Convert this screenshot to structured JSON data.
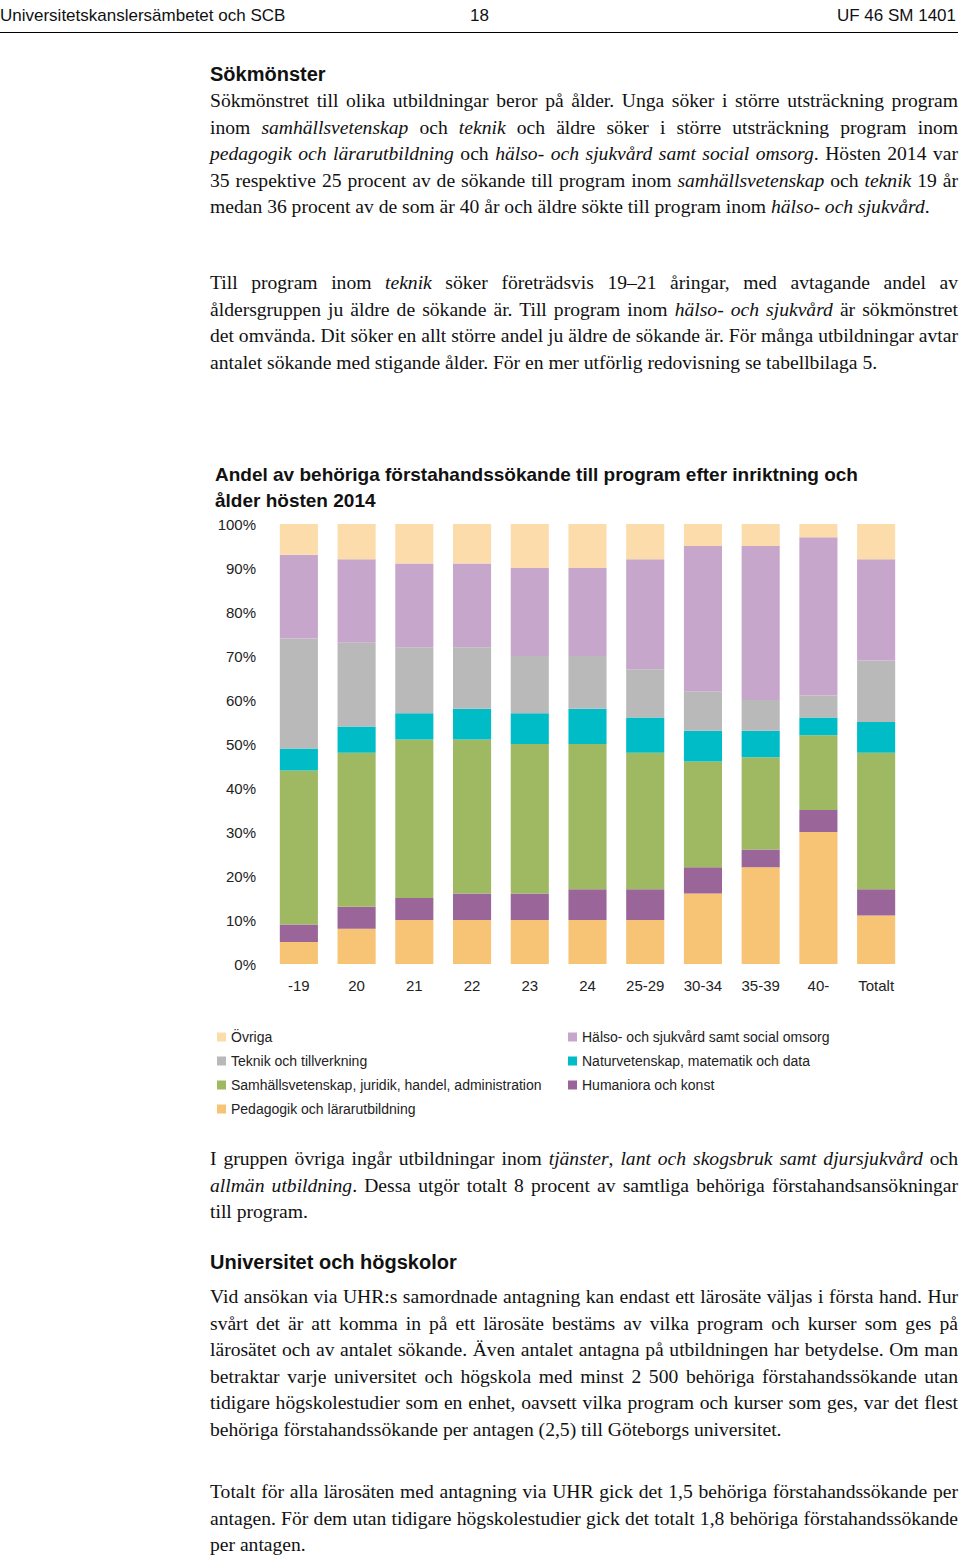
{
  "header": {
    "left": "Universitetskanslersämbetet och SCB",
    "center": "18",
    "right": "UF 46 SM 1401"
  },
  "heading1": "Sökmönster",
  "paragraphs1": [
    [
      "Sökmönstret till olika utbildningar beror på ålder. Unga söker i större utsträckning program inom ",
      {
        "text": "samhällsvetenskap",
        "italic": true
      },
      " och ",
      {
        "text": "teknik",
        "italic": true
      },
      " och äldre söker i större utsträckning program inom ",
      {
        "text": "pedagogik och lärarutbildning",
        "italic": true
      },
      " och ",
      {
        "text": "hälso- och sjukvård samt social omsorg",
        "italic": true
      },
      ". Hösten 2014 var 35 respektive 25 procent av de sökande till program inom ",
      {
        "text": "samhällsvetenskap",
        "italic": true
      },
      " och ",
      {
        "text": "teknik",
        "italic": true
      },
      " 19 år medan 36 procent av de som är 40 år och äldre sökte till program inom ",
      {
        "text": "hälso- och sjukvård",
        "italic": true
      },
      "."
    ],
    [
      "Till program inom ",
      {
        "text": "teknik",
        "italic": true
      },
      " söker företrädsvis 19–21 åringar, med avtagande andel av åldersgruppen ju äldre de sökande är. Till program inom ",
      {
        "text": "hälso- och sjukvård",
        "italic": true
      },
      " är sökmönstret det omvända. Dit söker en allt större andel ju äldre de sökande är. För många utbildningar avtar antalet sökande med stigande ålder. För en mer utförlig redovisning se tabellbilaga 5."
    ]
  ],
  "chart_data": {
    "type": "bar",
    "title": "Andel av behöriga förstahandssökande till program efter inriktning och ålder hösten 2014",
    "stacked": true,
    "grid": false,
    "categories": [
      "-19",
      "20",
      "21",
      "22",
      "23",
      "24",
      "25-29",
      "30-34",
      "35-39",
      "40-",
      "Totalt"
    ],
    "ylim": [
      0,
      100
    ],
    "yticks": [
      {
        "value": 0,
        "label": "0%"
      },
      {
        "value": 10,
        "label": "10%"
      },
      {
        "value": 20,
        "label": "20%"
      },
      {
        "value": 30,
        "label": "30%"
      },
      {
        "value": 40,
        "label": "40%"
      },
      {
        "value": 50,
        "label": "50%"
      },
      {
        "value": 60,
        "label": "60%"
      },
      {
        "value": 70,
        "label": "70%"
      },
      {
        "value": 80,
        "label": "80%"
      },
      {
        "value": 90,
        "label": "90%"
      },
      {
        "value": 100,
        "label": "100%"
      }
    ],
    "series": [
      {
        "name": "Pedagogik och lärarutbildning",
        "color": "#f7c374",
        "values": [
          5,
          8,
          10,
          10,
          10,
          10,
          10,
          16,
          22,
          30,
          11
        ]
      },
      {
        "name": "Humaniora och konst",
        "color": "#9a6599",
        "values": [
          4,
          5,
          5,
          6,
          6,
          7,
          7,
          6,
          4,
          5,
          6
        ]
      },
      {
        "name": "Samhällsvetenskap, juridik, handel, administration",
        "color": "#9fb862",
        "values": [
          35,
          35,
          36,
          35,
          34,
          33,
          31,
          24,
          21,
          17,
          31
        ]
      },
      {
        "name": "Naturvetenskap, matematik och data",
        "color": "#00bcc6",
        "values": [
          5,
          6,
          6,
          7,
          7,
          8,
          8,
          7,
          6,
          4,
          7
        ]
      },
      {
        "name": "Teknik och tillverkning",
        "color": "#b9b9b9",
        "values": [
          25,
          19,
          15,
          14,
          13,
          12,
          11,
          9,
          7,
          5,
          14
        ]
      },
      {
        "name": "Hälso- och sjukvård samt social omsorg",
        "color": "#c6a6ca",
        "values": [
          19,
          19,
          19,
          19,
          20,
          20,
          25,
          33,
          35,
          36,
          23
        ]
      },
      {
        "name": "Övriga",
        "color": "#fcdcab",
        "values": [
          7,
          8,
          9,
          9,
          10,
          10,
          8,
          5,
          5,
          3,
          8
        ]
      }
    ]
  },
  "paragraphs2": [
    [
      "I gruppen övriga ingår utbildningar inom ",
      {
        "text": "tjänster",
        "italic": true
      },
      ", ",
      {
        "text": "lant och skogsbruk samt djursjukvård",
        "italic": true
      },
      " och ",
      {
        "text": "allmän utbildning",
        "italic": true
      },
      ". Dessa utgör totalt 8 procent av samtliga behöriga förstahandsansökningar till program."
    ]
  ],
  "heading2": "Universitet och högskolor",
  "paragraphs3": [
    [
      "Vid ansökan via UHR:s samordnade antagning kan endast ett lärosäte väljas i första hand. Hur svårt det är att komma in på ett lärosäte bestäms av vilka program och kurser som ges på lärosätet och av antalet sökande. Även antalet antagna på utbildningen har betydelse. Om man betraktar varje universitet och högskola med minst 2 500 behöriga förstahandssökande utan tidigare högskolestudier som en enhet, oavsett vilka program och kurser som ges, var det flest behöriga förstahandssökande per antagen (2,5) till Göteborgs universitet."
    ],
    [
      "Totalt för alla lärosäten med antagning via UHR gick det 1,5 behöriga förstahandssökande per antagen. För dem utan tidigare högskolestudier gick det totalt 1,8 behöriga förstahandssökande per antagen."
    ]
  ]
}
